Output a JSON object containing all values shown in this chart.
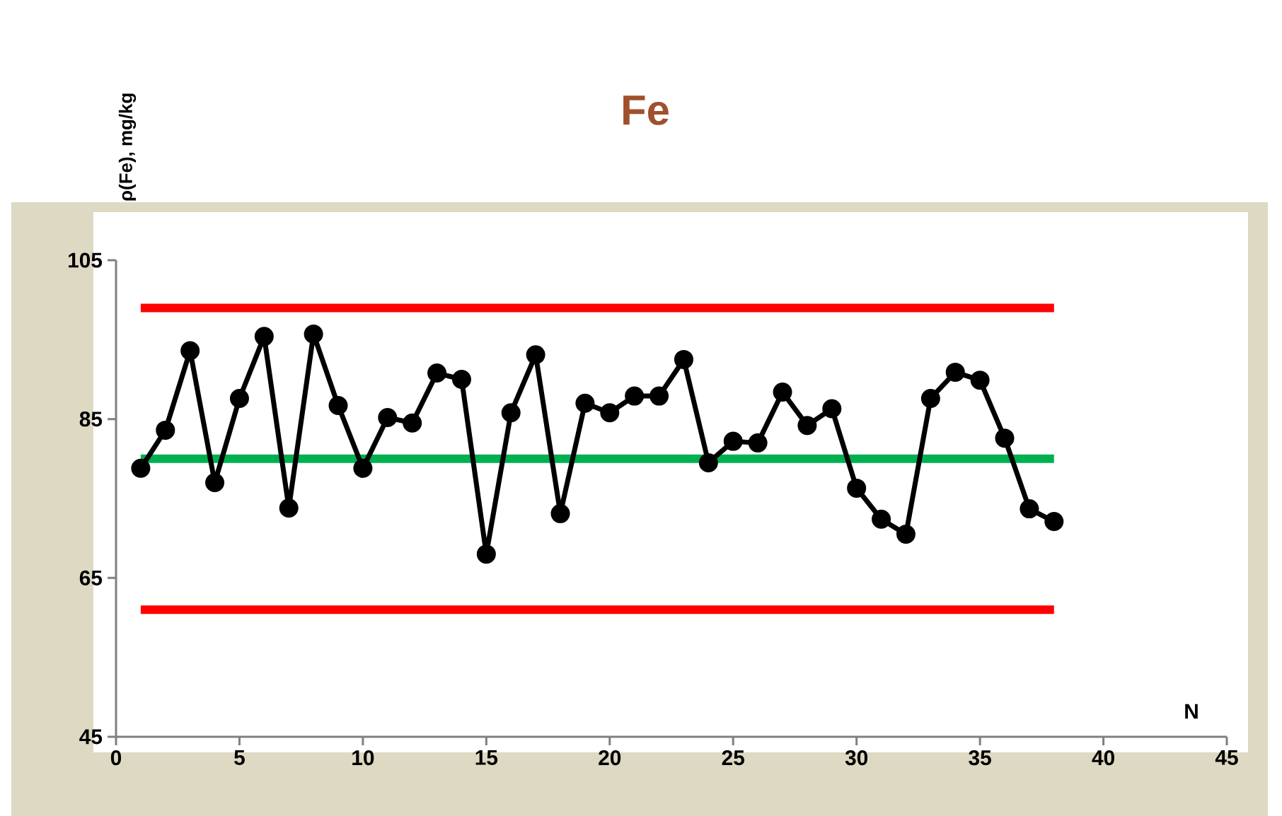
{
  "chart_data": {
    "type": "line",
    "title": "Fe",
    "xlabel": "N",
    "ylabel": "ρ(Fe), mg/kg",
    "x": [
      1,
      2,
      3,
      4,
      5,
      6,
      7,
      8,
      9,
      10,
      11,
      12,
      13,
      14,
      15,
      16,
      17,
      18,
      19,
      20,
      21,
      22,
      23,
      24,
      25,
      26,
      27,
      28,
      29,
      30,
      31,
      32,
      33,
      34,
      35,
      36,
      37,
      38
    ],
    "series": [
      {
        "color": "#000000",
        "values": [
          78.8,
          83.6,
          93.6,
          77.0,
          87.6,
          95.4,
          73.8,
          95.7,
          86.7,
          78.8,
          85.2,
          84.5,
          90.8,
          90.0,
          68.0,
          85.8,
          93.1,
          73.1,
          87.0,
          85.8,
          87.9,
          87.9,
          92.5,
          79.5,
          82.2,
          82.0,
          88.4,
          84.2,
          86.3,
          76.3,
          72.4,
          70.5,
          87.6,
          90.9,
          89.9,
          82.6,
          73.7,
          72.1
        ]
      }
    ],
    "marker": "circle",
    "line_style": "solid",
    "xlim": [
      0,
      45
    ],
    "xticks": [
      0,
      5,
      10,
      15,
      20,
      25,
      30,
      35,
      40,
      45
    ],
    "ylim": [
      45,
      105
    ],
    "yticks": [
      45,
      65,
      85,
      105
    ],
    "ref_lines": [
      {
        "axis": "y",
        "value": 99,
        "color": "#ff0000"
      },
      {
        "axis": "y",
        "value": 80,
        "color": "#00b050"
      },
      {
        "axis": "y",
        "value": 61,
        "color": "#ff0000"
      }
    ]
  }
}
